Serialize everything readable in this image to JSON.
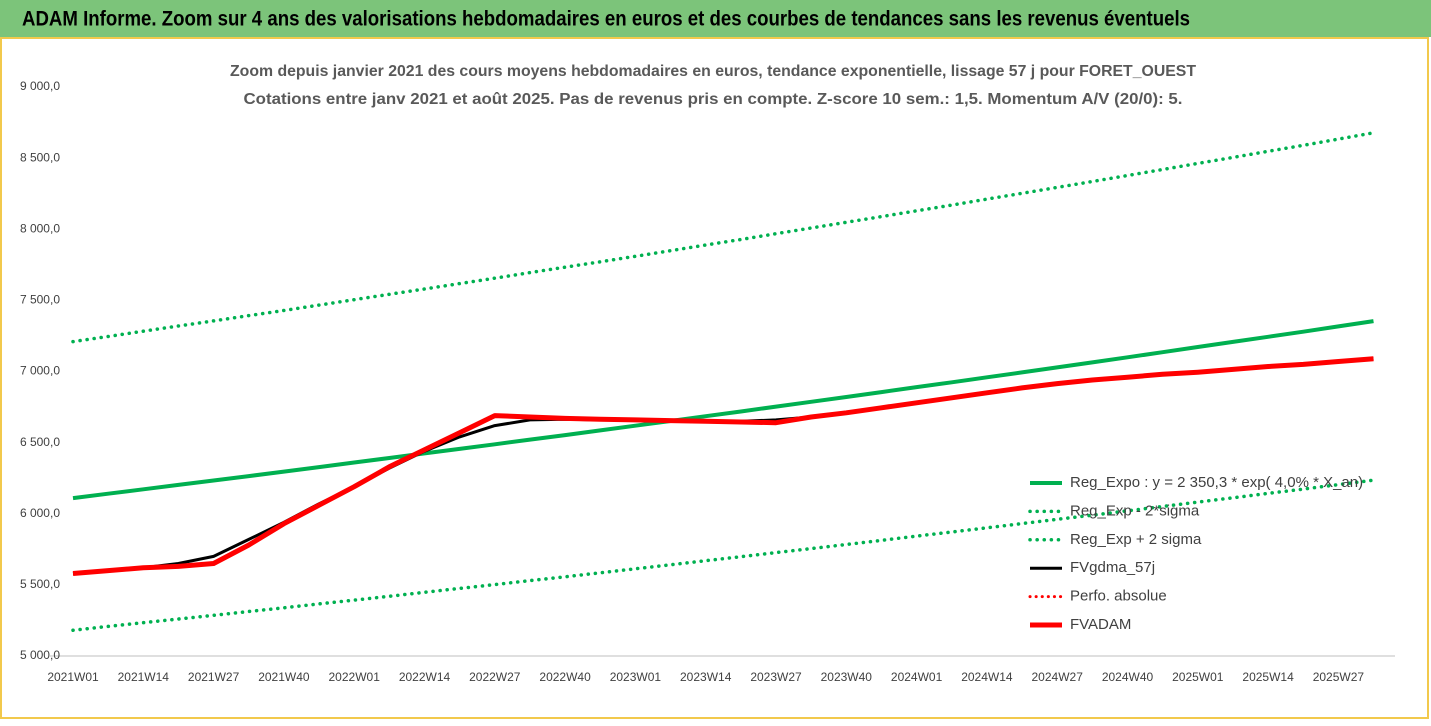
{
  "chart_data": {
    "type": "line",
    "header": "ADAM Informe. Zoom sur 4 ans des valorisations hebdomadaires en euros et des courbes de tendances sans les revenus éventuels",
    "title": "Zoom depuis janvier 2021 des cours moyens hebdomadaires en euros, tendance exponentielle, lissage 57 j pour FORET_OUEST",
    "subtitle": "Cotations entre janv 2021 et août 2025.  Pas de revenus pris en compte. Z-score 10 sem.: 1,5. Momentum A/V (20/0): 5.",
    "categories": [
      "2021W01",
      null,
      "2021W14",
      null,
      "2021W27",
      null,
      "2021W40",
      null,
      "2022W01",
      null,
      "2022W14",
      null,
      "2022W27",
      null,
      "2022W40",
      null,
      "2023W01",
      null,
      "2023W14",
      null,
      "2023W27",
      null,
      "2023W40",
      null,
      "2024W01",
      null,
      "2024W14",
      null,
      "2024W27",
      null,
      "2024W40",
      null,
      "2025W01",
      null,
      "2025W14",
      null,
      "2025W27",
      null
    ],
    "ylim": [
      5000,
      9000
    ],
    "yticks": [
      {
        "value": 5000,
        "label": "5 000,0"
      },
      {
        "value": 5500,
        "label": "5 500,0"
      },
      {
        "value": 6000,
        "label": "6 000,0"
      },
      {
        "value": 6500,
        "label": "6 500,0"
      },
      {
        "value": 7000,
        "label": "7 000,0"
      },
      {
        "value": 7500,
        "label": "7 500,0"
      },
      {
        "value": 8000,
        "label": "8 000,0"
      },
      {
        "value": 8500,
        "label": "8 500,0"
      },
      {
        "value": 9000,
        "label": "9 000,0"
      }
    ],
    "grid": false,
    "legend": "right",
    "series": [
      {
        "name": "Reg_Expo : y = 2 350,3 * exp( 4,0% * X_an)",
        "color": "#00b050",
        "style": "solid",
        "width": 4,
        "values": [
          6110,
          6141,
          6172,
          6203,
          6234,
          6265,
          6296,
          6328,
          6360,
          6392,
          6424,
          6456,
          6488,
          6521,
          6553,
          6586,
          6619,
          6652,
          6686,
          6719,
          6753,
          6787,
          6821,
          6855,
          6890,
          6924,
          6959,
          6994,
          7029,
          7064,
          7100,
          7136,
          7172,
          7208,
          7244,
          7280,
          7317,
          7354
        ]
      },
      {
        "name": "Reg_Exp - 2*sigma",
        "color": "#00b050",
        "style": "dotted",
        "width": 3.5,
        "values": [
          5181,
          5208,
          5234,
          5260,
          5286,
          5313,
          5339,
          5366,
          5393,
          5420,
          5448,
          5475,
          5502,
          5530,
          5557,
          5585,
          5613,
          5641,
          5670,
          5698,
          5727,
          5755,
          5784,
          5813,
          5843,
          5872,
          5901,
          5931,
          5961,
          5990,
          6021,
          6051,
          6082,
          6112,
          6143,
          6173,
          6205,
          6236
        ]
      },
      {
        "name": "Reg_Exp + 2 sigma",
        "color": "#00b050",
        "style": "dotted",
        "width": 3.5,
        "values": [
          7210,
          7246,
          7283,
          7320,
          7356,
          7393,
          7429,
          7467,
          7505,
          7543,
          7580,
          7618,
          7656,
          7695,
          7733,
          7771,
          7810,
          7849,
          7889,
          7928,
          7969,
          8009,
          8049,
          8089,
          8130,
          8170,
          8212,
          8253,
          8294,
          8336,
          8378,
          8420,
          8463,
          8505,
          8548,
          8590,
          8634,
          8678
        ]
      },
      {
        "name": "FVgdma_57j",
        "color": "#000000",
        "style": "solid",
        "width": 3,
        "values": [
          5580,
          5600,
          5620,
          5650,
          5700,
          5820,
          5940,
          6070,
          6190,
          6320,
          6440,
          6540,
          6620,
          6660,
          6665,
          6660,
          6660,
          6655,
          6650,
          6650,
          6660,
          6680,
          6710,
          6745,
          6780,
          6815,
          6850,
          6885,
          6915,
          6940,
          6960,
          6980,
          6995,
          7015,
          7035,
          7050,
          7070,
          7090
        ]
      },
      {
        "name": "Perfo. absolue",
        "color": "#ff0000",
        "style": "dotted",
        "width": 3,
        "values": [
          null,
          null,
          null,
          null,
          null,
          null,
          null,
          null,
          null,
          null,
          null,
          null,
          null,
          null,
          null,
          null,
          null,
          null,
          null,
          null,
          null,
          null,
          null,
          null,
          null,
          null,
          null,
          null,
          null,
          null,
          null,
          null,
          null,
          null,
          null,
          null,
          null,
          null
        ]
      },
      {
        "name": "FVADAM",
        "color": "#ff0000",
        "style": "solid",
        "width": 5,
        "values": [
          5580,
          5600,
          5620,
          5630,
          5650,
          5780,
          5930,
          6060,
          6190,
          6330,
          6450,
          6570,
          6690,
          6680,
          6670,
          6665,
          6660,
          6655,
          6650,
          6645,
          6640,
          6680,
          6710,
          6745,
          6780,
          6815,
          6850,
          6885,
          6915,
          6940,
          6960,
          6980,
          6995,
          7015,
          7035,
          7050,
          7070,
          7090
        ]
      }
    ]
  }
}
